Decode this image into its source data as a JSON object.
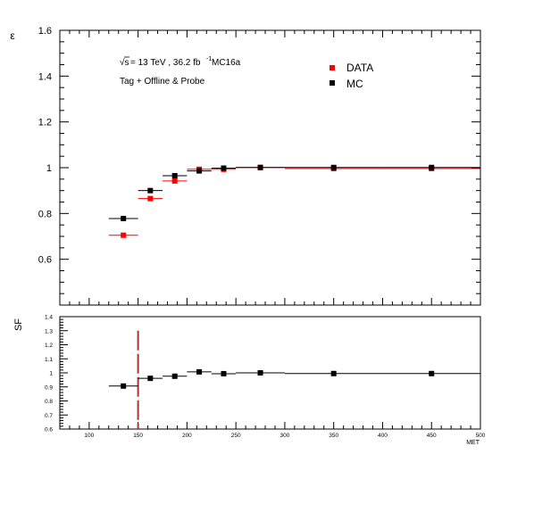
{
  "chart_data": [
    {
      "type": "scatter",
      "ylabel": "ε",
      "ylim": [
        0.4,
        1.6
      ],
      "xlim": [
        70,
        500
      ],
      "yticks": [
        "0.6",
        "0.8",
        "1",
        "1.2",
        "1.4",
        "1.6"
      ],
      "annotations": {
        "sqrt_s": "√s",
        "energy_text": "= 13 TeV , 36.2 fb",
        "lumi_exp": "-1",
        "campaign": "MC16a",
        "selection": "Tag + Offline & Probe"
      },
      "legend": {
        "placement": "top-right"
      },
      "series": [
        {
          "name": "DATA",
          "color": "#ff0000",
          "points": [
            {
              "x": 135,
              "xlo": 120,
              "xhi": 150,
              "y": 0.705
            },
            {
              "x": 162.5,
              "xlo": 150,
              "xhi": 175,
              "y": 0.865
            },
            {
              "x": 187.5,
              "xlo": 175,
              "xhi": 200,
              "y": 0.942
            },
            {
              "x": 212.5,
              "xlo": 200,
              "xhi": 225,
              "y": 0.993
            },
            {
              "x": 237.5,
              "xlo": 225,
              "xhi": 250,
              "y": 0.993
            },
            {
              "x": 275,
              "xlo": 250,
              "xhi": 300,
              "y": 1.001
            },
            {
              "x": 350,
              "xlo": 300,
              "xhi": 400,
              "y": 0.996
            },
            {
              "x": 450,
              "xlo": 400,
              "xhi": 500,
              "y": 0.996
            }
          ]
        },
        {
          "name": "MC",
          "color": "#000000",
          "points": [
            {
              "x": 135,
              "xlo": 120,
              "xhi": 150,
              "y": 0.778
            },
            {
              "x": 162.5,
              "xlo": 150,
              "xhi": 175,
              "y": 0.9
            },
            {
              "x": 187.5,
              "xlo": 175,
              "xhi": 200,
              "y": 0.965
            },
            {
              "x": 212.5,
              "xlo": 200,
              "xhi": 225,
              "y": 0.986
            },
            {
              "x": 237.5,
              "xlo": 225,
              "xhi": 250,
              "y": 0.998
            },
            {
              "x": 275,
              "xlo": 250,
              "xhi": 300,
              "y": 1.001
            },
            {
              "x": 350,
              "xlo": 300,
              "xhi": 400,
              "y": 1.001
            },
            {
              "x": 450,
              "xlo": 400,
              "xhi": 500,
              "y": 1.001
            }
          ]
        }
      ]
    },
    {
      "type": "scatter",
      "ylabel": "SF",
      "xlabel": "MET",
      "ylim": [
        0.6,
        1.4
      ],
      "xlim": [
        70,
        500
      ],
      "yticks": [
        "0.6",
        "0.7",
        "0.8",
        "0.9",
        "1",
        "1.1",
        "1.2",
        "1.3",
        "1.4"
      ],
      "xticks": [
        "100",
        "150",
        "200",
        "250",
        "300",
        "350",
        "400",
        "450",
        "500"
      ],
      "cut_line": {
        "x": 150,
        "ymin": 0.6,
        "ymax": 1.3,
        "color": "#b03030"
      },
      "series": [
        {
          "name": "",
          "color": "#000000",
          "points": [
            {
              "x": 135,
              "xlo": 120,
              "xhi": 150,
              "y": 0.906
            },
            {
              "x": 162.5,
              "xlo": 150,
              "xhi": 175,
              "y": 0.961
            },
            {
              "x": 187.5,
              "xlo": 175,
              "xhi": 200,
              "y": 0.976
            },
            {
              "x": 212.5,
              "xlo": 200,
              "xhi": 225,
              "y": 1.007
            },
            {
              "x": 237.5,
              "xlo": 225,
              "xhi": 250,
              "y": 0.994
            },
            {
              "x": 275,
              "xlo": 250,
              "xhi": 300,
              "y": 1.0
            },
            {
              "x": 350,
              "xlo": 300,
              "xhi": 400,
              "y": 0.995
            },
            {
              "x": 450,
              "xlo": 400,
              "xhi": 500,
              "y": 0.995
            }
          ]
        }
      ]
    }
  ]
}
